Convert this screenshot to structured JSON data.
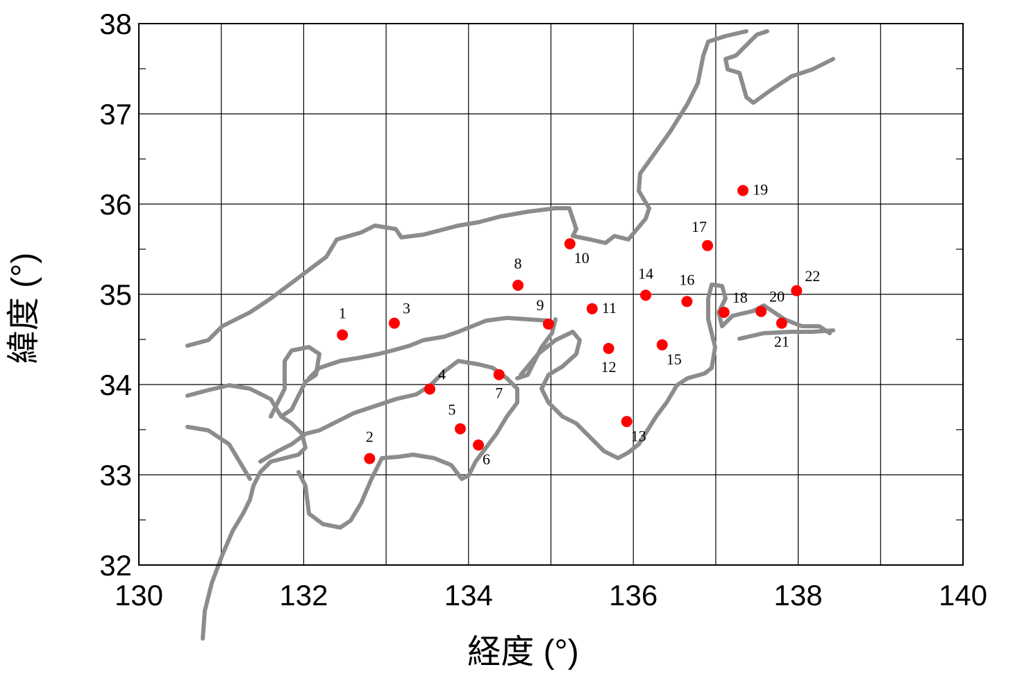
{
  "map": {
    "x_axis": {
      "label": "経度 (°)",
      "range": [
        130,
        140
      ],
      "ticks": [
        130,
        132,
        134,
        136,
        138,
        140
      ],
      "grid": [
        131,
        132,
        133,
        134,
        135,
        136,
        137,
        138,
        139
      ]
    },
    "y_axis": {
      "label": "緯度 (°)",
      "range": [
        32,
        38
      ],
      "ticks": [
        32,
        33,
        34,
        35,
        36,
        37,
        38
      ],
      "grid": [
        33,
        34,
        35,
        36,
        37
      ]
    },
    "grid": true,
    "coastline_color": "#8c8c8c",
    "marker_color": "#ff0000",
    "stations": [
      {
        "id": "1",
        "lon": 132.47,
        "lat": 34.55,
        "label_pos": "above"
      },
      {
        "id": "2",
        "lon": 132.8,
        "lat": 33.18,
        "label_pos": "above"
      },
      {
        "id": "3",
        "lon": 133.1,
        "lat": 34.68,
        "label_pos": "above-right"
      },
      {
        "id": "4",
        "lon": 133.53,
        "lat": 33.95,
        "label_pos": "above-right"
      },
      {
        "id": "5",
        "lon": 133.9,
        "lat": 33.51,
        "label_pos": "above-left"
      },
      {
        "id": "6",
        "lon": 134.12,
        "lat": 33.33,
        "label_pos": "below-right"
      },
      {
        "id": "7",
        "lon": 134.37,
        "lat": 34.11,
        "label_pos": "below"
      },
      {
        "id": "8",
        "lon": 134.6,
        "lat": 35.1,
        "label_pos": "above"
      },
      {
        "id": "9",
        "lon": 134.97,
        "lat": 34.67,
        "label_pos": "above-left"
      },
      {
        "id": "10",
        "lon": 135.23,
        "lat": 35.56,
        "label_pos": "below-right"
      },
      {
        "id": "11",
        "lon": 135.5,
        "lat": 34.84,
        "label_pos": "right"
      },
      {
        "id": "12",
        "lon": 135.7,
        "lat": 34.4,
        "label_pos": "below"
      },
      {
        "id": "13",
        "lon": 135.92,
        "lat": 33.59,
        "label_pos": "below-right"
      },
      {
        "id": "14",
        "lon": 136.15,
        "lat": 34.99,
        "label_pos": "above"
      },
      {
        "id": "15",
        "lon": 136.35,
        "lat": 34.44,
        "label_pos": "below-right"
      },
      {
        "id": "16",
        "lon": 136.65,
        "lat": 34.92,
        "label_pos": "above"
      },
      {
        "id": "17",
        "lon": 136.9,
        "lat": 35.54,
        "label_pos": "above-left"
      },
      {
        "id": "18",
        "lon": 137.1,
        "lat": 34.8,
        "label_pos": "above-right"
      },
      {
        "id": "19",
        "lon": 137.33,
        "lat": 36.15,
        "label_pos": "right"
      },
      {
        "id": "20",
        "lon": 137.55,
        "lat": 34.81,
        "label_pos": "above-right"
      },
      {
        "id": "21",
        "lon": 137.8,
        "lat": 34.68,
        "label_pos": "below"
      },
      {
        "id": "22",
        "lon": 137.98,
        "lat": 35.04,
        "label_pos": "above-right"
      }
    ]
  }
}
